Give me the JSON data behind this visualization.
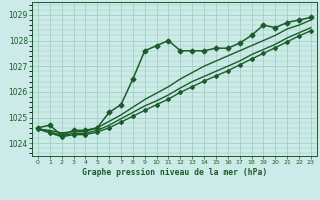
{
  "title": "Graphe pression niveau de la mer (hPa)",
  "bg_color": "#cceae7",
  "grid_color": "#99ccbb",
  "line_color": "#1a5c2a",
  "xlim": [
    -0.5,
    23.5
  ],
  "ylim": [
    1023.5,
    1029.5
  ],
  "yticks": [
    1024,
    1025,
    1026,
    1027,
    1028,
    1029
  ],
  "xticks": [
    0,
    1,
    2,
    3,
    4,
    5,
    6,
    7,
    8,
    9,
    10,
    11,
    12,
    13,
    14,
    15,
    16,
    17,
    18,
    19,
    20,
    21,
    22,
    23
  ],
  "series": [
    {
      "x": [
        0,
        1,
        2,
        3,
        4,
        5,
        6,
        7,
        8,
        9,
        10,
        11,
        12,
        13,
        14,
        15,
        16,
        17,
        18,
        19,
        20,
        21,
        22,
        23
      ],
      "y": [
        1024.6,
        1024.7,
        1024.3,
        1024.5,
        1024.5,
        1024.6,
        1025.2,
        1025.5,
        1026.5,
        1027.6,
        1027.8,
        1028.0,
        1027.6,
        1027.6,
        1027.6,
        1027.7,
        1027.7,
        1027.9,
        1028.2,
        1028.6,
        1028.5,
        1028.7,
        1028.8,
        1028.9
      ],
      "marker": "D",
      "markersize": 2.5,
      "linewidth": 1.1,
      "zorder": 5
    },
    {
      "x": [
        0,
        1,
        2,
        3,
        4,
        5,
        6,
        7,
        8,
        9,
        10,
        11,
        12,
        13,
        14,
        15,
        16,
        17,
        18,
        19,
        20,
        21,
        22,
        23
      ],
      "y": [
        1024.55,
        1024.5,
        1024.4,
        1024.45,
        1024.45,
        1024.6,
        1024.85,
        1025.1,
        1025.4,
        1025.7,
        1025.95,
        1026.2,
        1026.5,
        1026.75,
        1027.0,
        1027.2,
        1027.4,
        1027.6,
        1027.8,
        1028.0,
        1028.2,
        1028.45,
        1028.6,
        1028.8
      ],
      "marker": null,
      "markersize": 0,
      "linewidth": 1.0,
      "zorder": 3
    },
    {
      "x": [
        0,
        1,
        2,
        3,
        4,
        5,
        6,
        7,
        8,
        9,
        10,
        11,
        12,
        13,
        14,
        15,
        16,
        17,
        18,
        19,
        20,
        21,
        22,
        23
      ],
      "y": [
        1024.55,
        1024.45,
        1024.3,
        1024.38,
        1024.38,
        1024.5,
        1024.7,
        1024.95,
        1025.2,
        1025.45,
        1025.65,
        1025.88,
        1026.15,
        1026.4,
        1026.6,
        1026.8,
        1027.0,
        1027.2,
        1027.45,
        1027.65,
        1027.85,
        1028.1,
        1028.3,
        1028.5
      ],
      "marker": null,
      "markersize": 0,
      "linewidth": 1.0,
      "zorder": 3
    },
    {
      "x": [
        0,
        1,
        2,
        3,
        4,
        5,
        6,
        7,
        8,
        9,
        10,
        11,
        12,
        13,
        14,
        15,
        16,
        17,
        18,
        19,
        20,
        21,
        22,
        23
      ],
      "y": [
        1024.55,
        1024.4,
        1024.25,
        1024.33,
        1024.33,
        1024.43,
        1024.6,
        1024.82,
        1025.05,
        1025.28,
        1025.5,
        1025.72,
        1025.98,
        1026.2,
        1026.42,
        1026.62,
        1026.82,
        1027.05,
        1027.28,
        1027.5,
        1027.72,
        1027.95,
        1028.18,
        1028.38
      ],
      "marker": "D",
      "markersize": 2.0,
      "linewidth": 1.0,
      "zorder": 4
    }
  ]
}
